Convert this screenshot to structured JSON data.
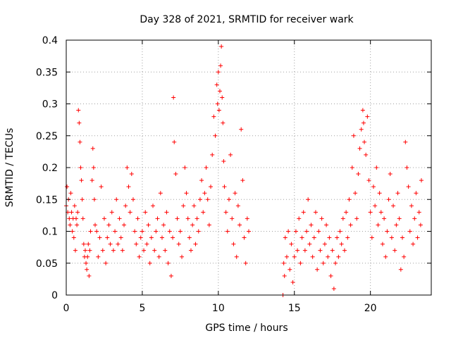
{
  "chart_data": {
    "type": "scatter",
    "title": "Day 328 of 2021, SRMTID for receiver wark",
    "xlabel": "GPS time / hours",
    "ylabel": "SRMTID / TECUs",
    "xlim": [
      0,
      24
    ],
    "ylim": [
      0,
      0.4
    ],
    "x_ticks": [
      0,
      5,
      10,
      15,
      20
    ],
    "x_tick_labels": [
      "0",
      "5",
      "10",
      "15",
      "20"
    ],
    "y_ticks": [
      0,
      0.05,
      0.1,
      0.15,
      0.2,
      0.25,
      0.3,
      0.35,
      0.4
    ],
    "y_tick_labels": [
      "0",
      "0.05",
      "0.1",
      "0.15",
      "0.2",
      "0.25",
      "0.3",
      "0.35",
      "0.4"
    ],
    "grid": true,
    "marker": "+",
    "marker_color": "#ff0000",
    "series": [
      {
        "name": "SRMTID",
        "points": [
          [
            0.0,
            0.14
          ],
          [
            0.05,
            0.17
          ],
          [
            0.1,
            0.13
          ],
          [
            0.15,
            0.15
          ],
          [
            0.2,
            0.12
          ],
          [
            0.25,
            0.11
          ],
          [
            0.3,
            0.16
          ],
          [
            0.35,
            0.13
          ],
          [
            0.4,
            0.1
          ],
          [
            0.45,
            0.12
          ],
          [
            0.5,
            0.09
          ],
          [
            0.55,
            0.14
          ],
          [
            0.6,
            0.07
          ],
          [
            0.65,
            0.12
          ],
          [
            0.7,
            0.11
          ],
          [
            0.75,
            0.13
          ],
          [
            0.8,
            0.29
          ],
          [
            0.85,
            0.27
          ],
          [
            0.9,
            0.24
          ],
          [
            0.95,
            0.2
          ],
          [
            1.0,
            0.18
          ],
          [
            1.05,
            0.15
          ],
          [
            1.1,
            0.12
          ],
          [
            1.15,
            0.08
          ],
          [
            1.2,
            0.06
          ],
          [
            1.25,
            0.07
          ],
          [
            1.3,
            0.05
          ],
          [
            1.35,
            0.04
          ],
          [
            1.4,
            0.06
          ],
          [
            1.45,
            0.08
          ],
          [
            1.5,
            0.03
          ],
          [
            1.55,
            0.07
          ],
          [
            1.6,
            0.1
          ],
          [
            1.7,
            0.18
          ],
          [
            1.75,
            0.23
          ],
          [
            1.8,
            0.2
          ],
          [
            1.85,
            0.15
          ],
          [
            1.9,
            0.11
          ],
          [
            2.0,
            0.1
          ],
          [
            2.1,
            0.06
          ],
          [
            2.2,
            0.09
          ],
          [
            2.3,
            0.17
          ],
          [
            2.4,
            0.07
          ],
          [
            2.5,
            0.12
          ],
          [
            2.6,
            0.05
          ],
          [
            2.7,
            0.09
          ],
          [
            2.8,
            0.11
          ],
          [
            2.9,
            0.08
          ],
          [
            3.0,
            0.13
          ],
          [
            3.1,
            0.07
          ],
          [
            3.2,
            0.1
          ],
          [
            3.3,
            0.15
          ],
          [
            3.4,
            0.08
          ],
          [
            3.5,
            0.12
          ],
          [
            3.6,
            0.09
          ],
          [
            3.7,
            0.07
          ],
          [
            3.8,
            0.11
          ],
          [
            3.9,
            0.14
          ],
          [
            4.0,
            0.2
          ],
          [
            4.1,
            0.17
          ],
          [
            4.2,
            0.13
          ],
          [
            4.3,
            0.19
          ],
          [
            4.4,
            0.15
          ],
          [
            4.5,
            0.1
          ],
          [
            4.6,
            0.08
          ],
          [
            4.7,
            0.12
          ],
          [
            4.8,
            0.06
          ],
          [
            4.9,
            0.09
          ],
          [
            5.0,
            0.1
          ],
          [
            5.1,
            0.07
          ],
          [
            5.2,
            0.13
          ],
          [
            5.3,
            0.08
          ],
          [
            5.4,
            0.11
          ],
          [
            5.5,
            0.05
          ],
          [
            5.6,
            0.09
          ],
          [
            5.7,
            0.14
          ],
          [
            5.8,
            0.07
          ],
          [
            5.9,
            0.1
          ],
          [
            6.0,
            0.12
          ],
          [
            6.1,
            0.06
          ],
          [
            6.2,
            0.16
          ],
          [
            6.3,
            0.09
          ],
          [
            6.4,
            0.11
          ],
          [
            6.5,
            0.07
          ],
          [
            6.6,
            0.13
          ],
          [
            6.7,
            0.05
          ],
          [
            6.8,
            0.1
          ],
          [
            6.9,
            0.03
          ],
          [
            7.0,
            0.09
          ],
          [
            7.05,
            0.31
          ],
          [
            7.1,
            0.24
          ],
          [
            7.2,
            0.19
          ],
          [
            7.3,
            0.12
          ],
          [
            7.4,
            0.08
          ],
          [
            7.5,
            0.1
          ],
          [
            7.6,
            0.06
          ],
          [
            7.7,
            0.14
          ],
          [
            7.8,
            0.2
          ],
          [
            7.9,
            0.16
          ],
          [
            8.0,
            0.12
          ],
          [
            8.1,
            0.09
          ],
          [
            8.2,
            0.07
          ],
          [
            8.3,
            0.11
          ],
          [
            8.4,
            0.14
          ],
          [
            8.5,
            0.08
          ],
          [
            8.6,
            0.12
          ],
          [
            8.7,
            0.1
          ],
          [
            8.8,
            0.15
          ],
          [
            8.9,
            0.18
          ],
          [
            9.0,
            0.13
          ],
          [
            9.1,
            0.16
          ],
          [
            9.2,
            0.2
          ],
          [
            9.3,
            0.15
          ],
          [
            9.4,
            0.11
          ],
          [
            9.5,
            0.17
          ],
          [
            9.6,
            0.22
          ],
          [
            9.7,
            0.28
          ],
          [
            9.8,
            0.25
          ],
          [
            9.9,
            0.33
          ],
          [
            9.95,
            0.3
          ],
          [
            10.0,
            0.35
          ],
          [
            10.05,
            0.29
          ],
          [
            10.1,
            0.32
          ],
          [
            10.15,
            0.36
          ],
          [
            10.2,
            0.39
          ],
          [
            10.25,
            0.31
          ],
          [
            10.3,
            0.27
          ],
          [
            10.35,
            0.21
          ],
          [
            10.4,
            0.17
          ],
          [
            10.5,
            0.13
          ],
          [
            10.6,
            0.1
          ],
          [
            10.7,
            0.15
          ],
          [
            10.8,
            0.22
          ],
          [
            10.9,
            0.12
          ],
          [
            11.0,
            0.08
          ],
          [
            11.1,
            0.16
          ],
          [
            11.2,
            0.06
          ],
          [
            11.3,
            0.14
          ],
          [
            11.4,
            0.11
          ],
          [
            11.5,
            0.26
          ],
          [
            11.6,
            0.18
          ],
          [
            11.7,
            0.09
          ],
          [
            11.8,
            0.05
          ],
          [
            11.9,
            0.12
          ],
          [
            12.0,
            0.1
          ],
          [
            14.25,
            0.0
          ],
          [
            14.3,
            0.05
          ],
          [
            14.35,
            0.03
          ],
          [
            14.4,
            0.09
          ],
          [
            14.5,
            0.06
          ],
          [
            14.6,
            0.1
          ],
          [
            14.7,
            0.04
          ],
          [
            14.8,
            0.08
          ],
          [
            14.9,
            0.02
          ],
          [
            15.0,
            0.06
          ],
          [
            15.1,
            0.1
          ],
          [
            15.2,
            0.07
          ],
          [
            15.3,
            0.12
          ],
          [
            15.4,
            0.05
          ],
          [
            15.5,
            0.09
          ],
          [
            15.6,
            0.13
          ],
          [
            15.7,
            0.07
          ],
          [
            15.8,
            0.1
          ],
          [
            15.9,
            0.15
          ],
          [
            16.0,
            0.08
          ],
          [
            16.1,
            0.11
          ],
          [
            16.2,
            0.06
          ],
          [
            16.3,
            0.09
          ],
          [
            16.4,
            0.13
          ],
          [
            16.5,
            0.04
          ],
          [
            16.6,
            0.1
          ],
          [
            16.7,
            0.07
          ],
          [
            16.8,
            0.12
          ],
          [
            16.9,
            0.05
          ],
          [
            17.0,
            0.08
          ],
          [
            17.1,
            0.11
          ],
          [
            17.2,
            0.06
          ],
          [
            17.3,
            0.09
          ],
          [
            17.4,
            0.03
          ],
          [
            17.5,
            0.07
          ],
          [
            17.6,
            0.01
          ],
          [
            17.7,
            0.05
          ],
          [
            17.8,
            0.09
          ],
          [
            17.9,
            0.06
          ],
          [
            18.0,
            0.1
          ],
          [
            18.1,
            0.08
          ],
          [
            18.2,
            0.12
          ],
          [
            18.3,
            0.07
          ],
          [
            18.4,
            0.13
          ],
          [
            18.5,
            0.09
          ],
          [
            18.6,
            0.15
          ],
          [
            18.7,
            0.11
          ],
          [
            18.8,
            0.2
          ],
          [
            18.9,
            0.25
          ],
          [
            19.0,
            0.16
          ],
          [
            19.1,
            0.12
          ],
          [
            19.2,
            0.19
          ],
          [
            19.3,
            0.23
          ],
          [
            19.4,
            0.26
          ],
          [
            19.5,
            0.29
          ],
          [
            19.55,
            0.27
          ],
          [
            19.6,
            0.24
          ],
          [
            19.7,
            0.22
          ],
          [
            19.8,
            0.28
          ],
          [
            19.9,
            0.18
          ],
          [
            20.0,
            0.13
          ],
          [
            20.1,
            0.09
          ],
          [
            20.2,
            0.17
          ],
          [
            20.3,
            0.14
          ],
          [
            20.4,
            0.2
          ],
          [
            20.5,
            0.11
          ],
          [
            20.6,
            0.16
          ],
          [
            20.7,
            0.13
          ],
          [
            20.8,
            0.08
          ],
          [
            20.9,
            0.12
          ],
          [
            21.0,
            0.06
          ],
          [
            21.1,
            0.1
          ],
          [
            21.2,
            0.15
          ],
          [
            21.3,
            0.19
          ],
          [
            21.4,
            0.09
          ],
          [
            21.5,
            0.14
          ],
          [
            21.6,
            0.07
          ],
          [
            21.7,
            0.11
          ],
          [
            21.8,
            0.16
          ],
          [
            21.9,
            0.12
          ],
          [
            22.0,
            0.04
          ],
          [
            22.1,
            0.09
          ],
          [
            22.2,
            0.06
          ],
          [
            22.3,
            0.24
          ],
          [
            22.4,
            0.2
          ],
          [
            22.5,
            0.17
          ],
          [
            22.6,
            0.1
          ],
          [
            22.7,
            0.14
          ],
          [
            22.8,
            0.08
          ],
          [
            22.9,
            0.12
          ],
          [
            23.0,
            0.16
          ],
          [
            23.1,
            0.09
          ],
          [
            23.2,
            0.13
          ],
          [
            23.3,
            0.11
          ],
          [
            23.35,
            0.18
          ]
        ]
      }
    ]
  }
}
